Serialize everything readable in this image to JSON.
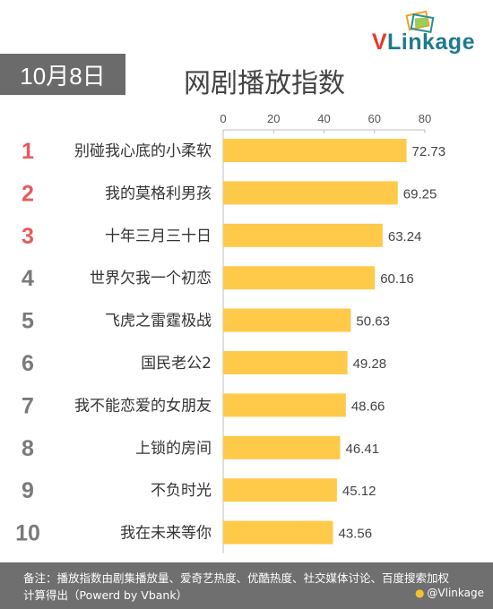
{
  "brand": {
    "logo_v": "V",
    "logo_rest": "Linkage"
  },
  "header": {
    "date": "10月8日",
    "title": "网剧播放指数"
  },
  "chart_data": {
    "type": "bar",
    "orientation": "horizontal",
    "title": "网剧播放指数",
    "xlim": [
      0,
      80
    ],
    "xticks": [
      "0",
      "20",
      "40",
      "60",
      "80"
    ],
    "axis_position": "top",
    "grid": false,
    "bar_color": "#ffc94a",
    "rank_colors": {
      "top3": "#e85a5a",
      "rest": "#7a7a7a"
    },
    "ranks": [
      "1",
      "2",
      "3",
      "4",
      "5",
      "6",
      "7",
      "8",
      "9",
      "10"
    ],
    "categories": [
      "别碰我心底的小柔软",
      "我的莫格利男孩",
      "十年三月三十日",
      "世界欠我一个初恋",
      "飞虎之雷霆极战",
      "国民老公2",
      "我不能恋爱的女朋友",
      "上锁的房间",
      "不负时光",
      "我在未来等你"
    ],
    "values": [
      72.73,
      69.25,
      63.24,
      60.16,
      50.63,
      49.28,
      48.66,
      46.41,
      45.12,
      43.56
    ],
    "value_labels": [
      "72.73",
      "69.25",
      "63.24",
      "60.16",
      "50.63",
      "49.28",
      "48.66",
      "46.41",
      "45.12",
      "43.56"
    ]
  },
  "footer": {
    "note": "备注：播放指数由剧集播放量、爱奇艺热度、优酷热度、社交媒体讨论、百度搜索加权计算得出（Powerd by Vbank）",
    "handle": "@Vlinkage",
    "weibo_icon": "weibo-icon"
  }
}
